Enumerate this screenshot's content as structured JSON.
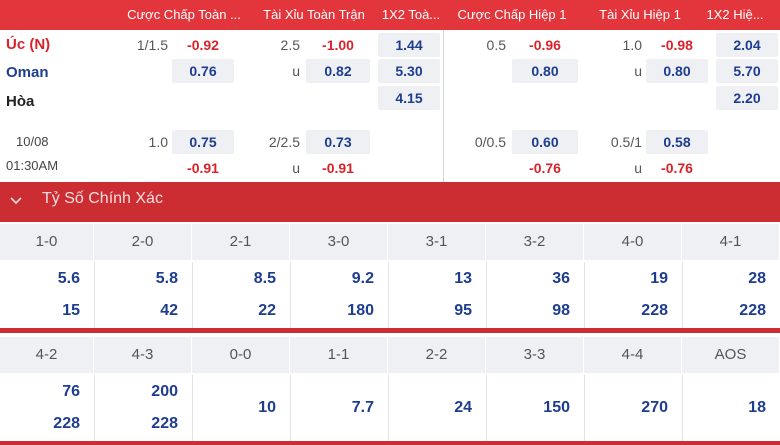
{
  "headers": [
    "Cược Chấp Toàn ...",
    "Tài Xỉu Toàn Trận",
    "1X2 Toà...",
    "Cược Chấp Hiệp 1",
    "Tài Xỉu Hiệp 1",
    "1X2 Hiệ..."
  ],
  "teams": {
    "home": "Úc (N)",
    "away": "Oman",
    "draw": "Hòa"
  },
  "match_time": {
    "date": "10/08",
    "time": "01:30AM"
  },
  "main_odds": {
    "ft_hdp_line": "1/1.5",
    "ft_hdp_home": "-0.92",
    "ft_hdp_away": "0.76",
    "ft_ou_line": "2.5",
    "ft_ou_over": "-1.00",
    "ft_ou_under_label": "u",
    "ft_ou_under": "0.82",
    "ft_1x2_home": "1.44",
    "ft_1x2_away": "5.30",
    "ft_1x2_draw": "4.15",
    "h1_hdp_line": "0.5",
    "h1_hdp_home": "-0.96",
    "h1_hdp_away": "0.80",
    "h1_ou_line": "1.0",
    "h1_ou_over": "-0.98",
    "h1_ou_under_label": "u",
    "h1_ou_under": "0.80",
    "h1_1x2_home": "2.04",
    "h1_1x2_away": "5.70",
    "h1_1x2_draw": "2.20"
  },
  "alt_odds": {
    "ft_hdp_line": "1.0",
    "ft_hdp_home": "0.75",
    "ft_hdp_away": "-0.91",
    "ft_ou_line": "2/2.5",
    "ft_ou_over": "0.73",
    "ft_ou_under_label": "u",
    "ft_ou_under": "-0.91",
    "h1_hdp_line": "0/0.5",
    "h1_hdp_home": "0.60",
    "h1_hdp_away": "-0.76",
    "h1_ou_line": "0.5/1",
    "h1_ou_over": "0.58",
    "h1_ou_under_label": "u",
    "h1_ou_under": "-0.76"
  },
  "section": {
    "title": "Tỷ Số Chính Xác",
    "icon": "chevron-down-icon"
  },
  "correct_score": {
    "row1": [
      {
        "score": "1-0",
        "top": "5.6",
        "bottom": "15"
      },
      {
        "score": "2-0",
        "top": "5.8",
        "bottom": "42"
      },
      {
        "score": "2-1",
        "top": "8.5",
        "bottom": "22"
      },
      {
        "score": "3-0",
        "top": "9.2",
        "bottom": "180"
      },
      {
        "score": "3-1",
        "top": "13",
        "bottom": "95"
      },
      {
        "score": "3-2",
        "top": "36",
        "bottom": "98"
      },
      {
        "score": "4-0",
        "top": "19",
        "bottom": "228"
      },
      {
        "score": "4-1",
        "top": "28",
        "bottom": "228"
      }
    ],
    "row2": [
      {
        "score": "4-2",
        "top": "76",
        "bottom": "228"
      },
      {
        "score": "4-3",
        "top": "200",
        "bottom": "228"
      },
      {
        "score": "0-0",
        "single": "10"
      },
      {
        "score": "1-1",
        "single": "7.7"
      },
      {
        "score": "2-2",
        "single": "24"
      },
      {
        "score": "3-3",
        "single": "150"
      },
      {
        "score": "4-4",
        "single": "270"
      },
      {
        "score": "AOS",
        "single": "18"
      }
    ]
  },
  "colors": {
    "header_red": "#e2363c",
    "section_red": "#cc2d33",
    "odds_blue": "#1e3d8f",
    "odds_red": "#d9232a"
  }
}
